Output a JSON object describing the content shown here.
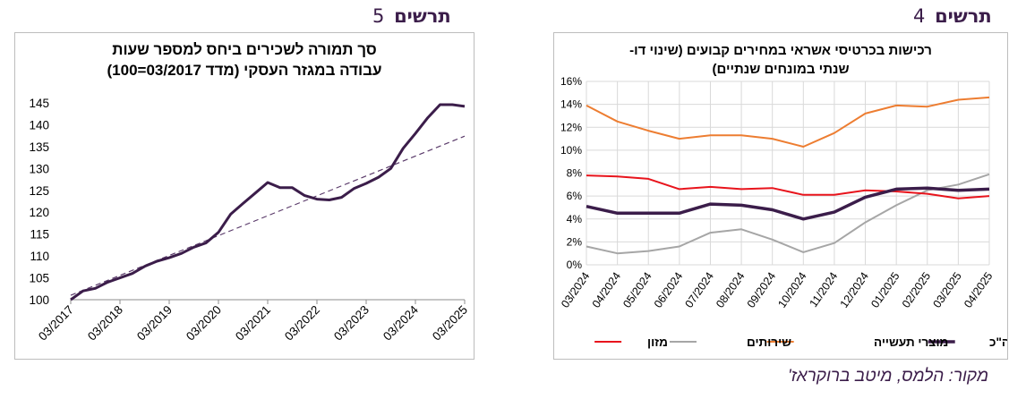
{
  "headings": {
    "left": {
      "word": "תרשים",
      "number": "5"
    },
    "right": {
      "word": "תרשים",
      "number": "4"
    }
  },
  "source": "מקור: הלמס, מיטב ברוקראז'",
  "chart_data": [
    {
      "id": "left",
      "type": "line",
      "title_lines": [
        "סך תמורה לשכירים  ביחס למספר שעות",
        "עבודה במגזר העסקי (מדד 03/2017=100)"
      ],
      "xlabel": "",
      "ylabel": "",
      "ylim": [
        100,
        145
      ],
      "yticks": [
        100,
        105,
        110,
        115,
        120,
        125,
        130,
        135,
        140,
        145
      ],
      "xtick_labels": [
        "03/2017",
        "03/2018",
        "03/2019",
        "03/2020",
        "03/2021",
        "03/2022",
        "03/2023",
        "03/2024",
        "03/2025"
      ],
      "x_count": 33,
      "series": [
        {
          "values": [
            100,
            102,
            102.6,
            104,
            105,
            106,
            107.6,
            108.8,
            109.6,
            110.6,
            112,
            113,
            115.4,
            119.6,
            122,
            124.4,
            126.8,
            125.6,
            125.6,
            123.8,
            123,
            122.8,
            123.4,
            125.4,
            126.6,
            128,
            130,
            134.6,
            138,
            141.6,
            144.6,
            144.6,
            144.2
          ],
          "color": "#3b1d4a",
          "width": 3
        },
        {
          "values": [
            101,
            137.4
          ],
          "color": "#5a3a6a",
          "width": 1.2,
          "dashed": true,
          "trend": true
        }
      ],
      "grid": false
    },
    {
      "id": "right",
      "type": "line",
      "title_lines": [
        "רכישות בכרטיסי אשראי במחירים קבועים (שינוי דו-",
        "שנתי במונחים שנתיים)"
      ],
      "xlabel": "",
      "ylabel": "",
      "ylim": [
        0,
        16
      ],
      "ytick_labels": [
        "0%",
        "2%",
        "4%",
        "6%",
        "8%",
        "10%",
        "12%",
        "14%",
        "16%"
      ],
      "categories": [
        "03/2024",
        "04/2024",
        "05/2024",
        "06/2024",
        "07/2024",
        "08/2024",
        "09/2024",
        "10/2024",
        "11/2024",
        "12/2024",
        "01/2025",
        "02/2025",
        "03/2025",
        "04/2025"
      ],
      "series": [
        {
          "name": "סה\"כ",
          "color": "#3b1d4a",
          "width": 3.5,
          "values": [
            5.1,
            4.5,
            4.5,
            4.5,
            5.3,
            5.2,
            4.8,
            4.0,
            4.6,
            5.9,
            6.6,
            6.7,
            6.5,
            6.6
          ]
        },
        {
          "name": "מוצרי תעשייה",
          "color": "#ed7d31",
          "width": 2,
          "values": [
            13.9,
            12.5,
            11.7,
            11.0,
            11.3,
            11.3,
            11.0,
            10.3,
            11.5,
            13.2,
            13.9,
            13.8,
            14.4,
            14.6
          ]
        },
        {
          "name": "שירותים",
          "color": "#a6a6a6",
          "width": 2,
          "values": [
            1.6,
            1.0,
            1.2,
            1.6,
            2.8,
            3.1,
            2.2,
            1.1,
            1.9,
            3.7,
            5.2,
            6.5,
            7.0,
            7.9
          ]
        },
        {
          "name": "מזון",
          "color": "#e8141c",
          "width": 2,
          "values": [
            7.8,
            7.7,
            7.5,
            6.6,
            6.8,
            6.6,
            6.7,
            6.1,
            6.1,
            6.5,
            6.4,
            6.2,
            5.8,
            6.0
          ]
        }
      ],
      "legend_order": [
        "סה\"כ",
        "מוצרי תעשייה",
        "שירותים",
        "מזון"
      ],
      "legend_position": "bottom",
      "grid": true
    }
  ]
}
